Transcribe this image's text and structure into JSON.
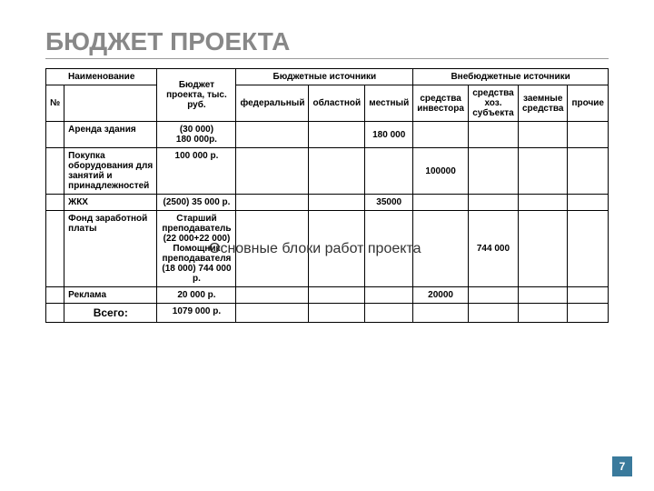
{
  "title": "БЮДЖЕТ ПРОЕКТА",
  "headers": {
    "name": "Наименование",
    "num": "№",
    "budget_total": "Бюджет проекта, тыс. руб.",
    "budget_sources": "Бюджетные источники",
    "offbudget_sources": "Внебюджетные источники",
    "federal": "федеральный",
    "regional": "областной",
    "local": "местный",
    "investor": "средства инвестора",
    "economic": "средства хоз. субъекта",
    "loan": "заемные средства",
    "other": "прочие"
  },
  "rows": [
    {
      "name": "Аренда здания",
      "budget": "(30 000)\n180 000р.",
      "federal": "",
      "regional": "",
      "local": "180 000",
      "investor": "",
      "economic": "",
      "loan": "",
      "other": ""
    },
    {
      "name": "Покупка оборудования для занятий и принадлежностей",
      "budget": "100 000 р.",
      "federal": "",
      "regional": "",
      "local": "",
      "investor": "100000",
      "economic": "",
      "loan": "",
      "other": ""
    },
    {
      "name": "ЖКХ",
      "budget": "(2500) 35 000 р.",
      "federal": "",
      "regional": "",
      "local": "35000",
      "investor": "",
      "economic": "",
      "loan": "",
      "other": ""
    },
    {
      "name": "Фонд заработной платы",
      "budget": "Старший преподаватель (22 000+22 000) Помощник преподавателя (18 000) 744 000 р.",
      "federal": "",
      "regional": "",
      "local": "",
      "investor": "",
      "economic": "744 000",
      "loan": "",
      "other": ""
    },
    {
      "name": "Реклама",
      "budget": "20 000 р.",
      "federal": "",
      "regional": "",
      "local": "",
      "investor": "20000",
      "economic": "",
      "loan": "",
      "other": ""
    }
  ],
  "total": {
    "label": "Всего:",
    "budget": "1079 000 р."
  },
  "overlay_text": "Основные блоки работ проекта",
  "page_number": "7",
  "colwidths": {
    "num": "3%",
    "name": "25%",
    "budget": "18%",
    "federal": "7%",
    "regional": "7%",
    "local": "8%",
    "investor": "8%",
    "economic": "10%",
    "loan": "7%",
    "other": "7%"
  }
}
